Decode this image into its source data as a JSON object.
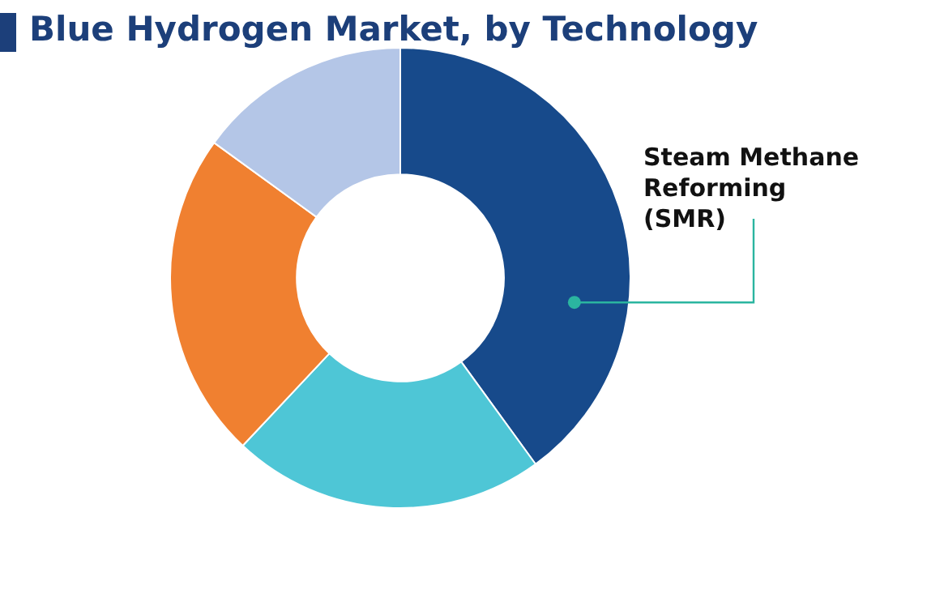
{
  "chart_data": {
    "type": "donut",
    "title": "Blue Hydrogen Market, by Technology",
    "categories": [
      "Steam Methane Reforming (SMR)",
      null,
      null,
      null
    ],
    "values": [
      40,
      22,
      23,
      15
    ],
    "colors": [
      "#174a8b",
      "#4ec6d6",
      "#f08030",
      "#b4c6e7"
    ],
    "legend": false
  }
}
